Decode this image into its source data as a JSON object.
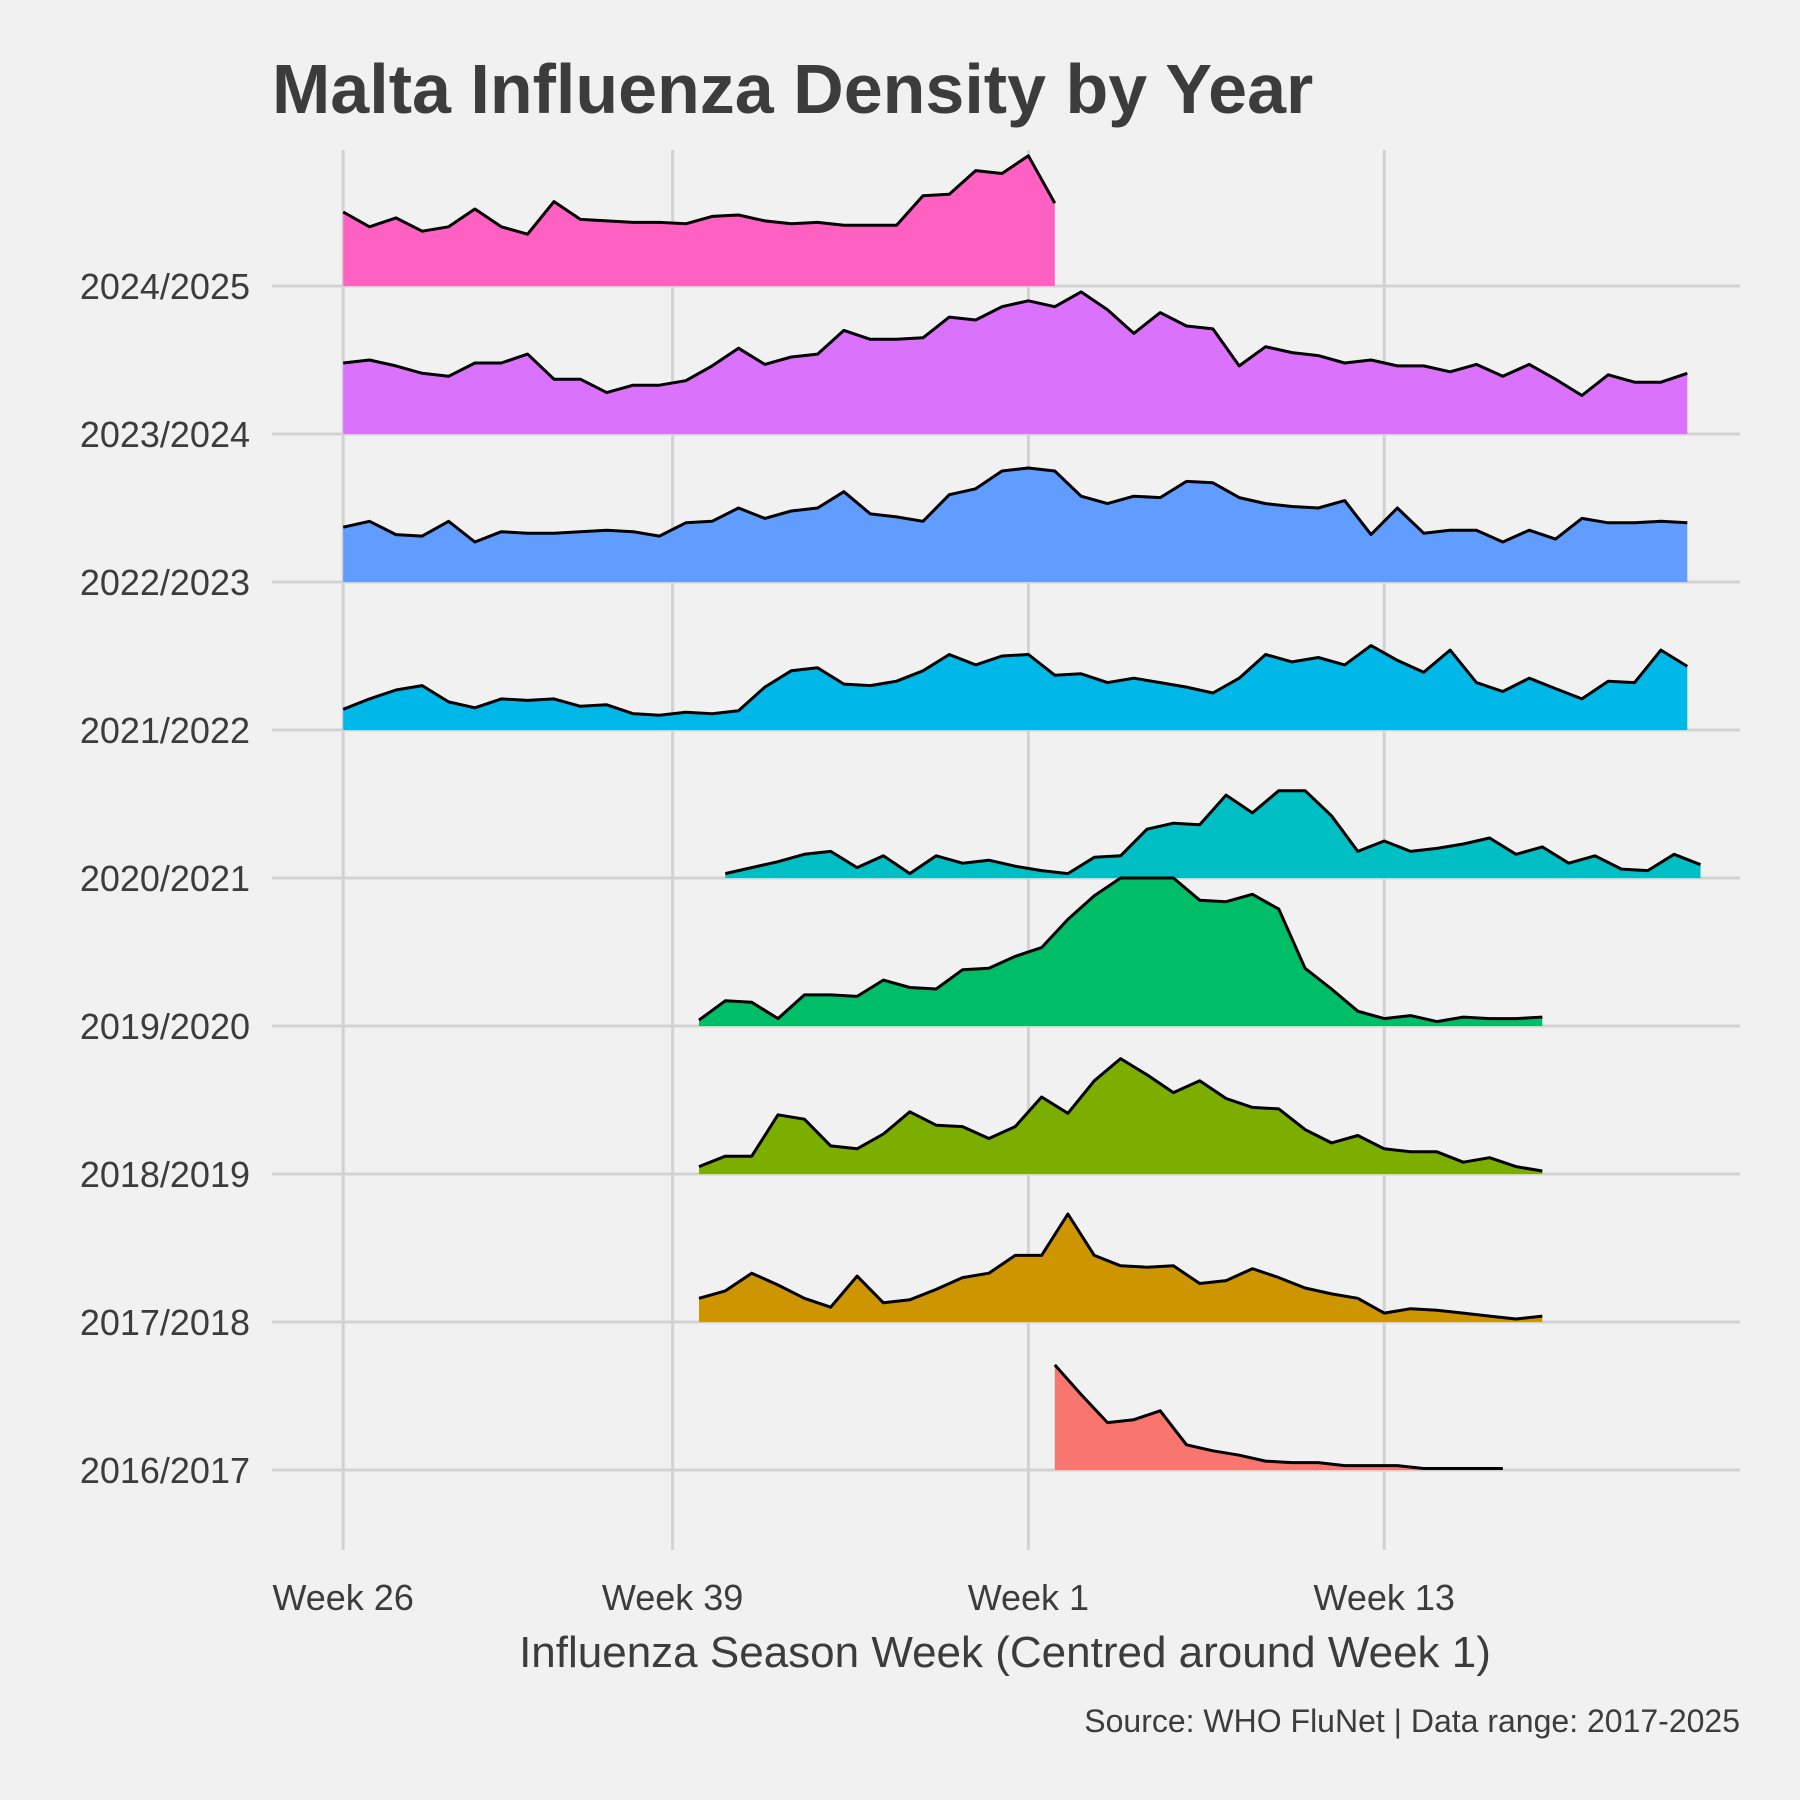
{
  "chart_data": {
    "type": "area",
    "subtype": "ridgeline",
    "title": "Malta Influenza Density by Year",
    "xlabel": "Influenza Season Week (Centred around Week 1)",
    "caption": "Source: WHO FluNet | Data range: 2017-2025",
    "x_unit": "weeks from Week 26 (season week index)",
    "xlim": [
      -2.7,
      53
    ],
    "x_ticks": [
      {
        "value": 0,
        "label": "Week 26"
      },
      {
        "value": 12.5,
        "label": "Week 39"
      },
      {
        "value": 26,
        "label": "Week 1"
      },
      {
        "value": 39.5,
        "label": "Week 13"
      }
    ],
    "grid": true,
    "legend": "none",
    "ridge_height_max": 1.9,
    "series": [
      {
        "name": "2016/2017",
        "color": "#F8766D",
        "start": 27,
        "values": [
          0.71,
          0.51,
          0.32,
          0.34,
          0.4,
          0.17,
          0.13,
          0.1,
          0.06,
          0.05,
          0.05,
          0.03,
          0.03,
          0.03,
          0.01,
          0.01,
          0.01,
          0.01
        ]
      },
      {
        "name": "2017/2018",
        "color": "#CD9600",
        "start": 13.5,
        "values": [
          0.16,
          0.21,
          0.33,
          0.25,
          0.16,
          0.1,
          0.31,
          0.13,
          0.15,
          0.22,
          0.3,
          0.33,
          0.45,
          0.45,
          0.73,
          0.45,
          0.38,
          0.37,
          0.38,
          0.26,
          0.28,
          0.36,
          0.3,
          0.23,
          0.19,
          0.16,
          0.06,
          0.09,
          0.08,
          0.06,
          0.04,
          0.02,
          0.04
        ]
      },
      {
        "name": "2018/2019",
        "color": "#7CAE00",
        "start": 13.5,
        "values": [
          0.05,
          0.12,
          0.12,
          0.4,
          0.37,
          0.19,
          0.17,
          0.27,
          0.42,
          0.33,
          0.32,
          0.24,
          0.32,
          0.52,
          0.41,
          0.63,
          0.78,
          0.67,
          0.55,
          0.63,
          0.51,
          0.45,
          0.44,
          0.3,
          0.21,
          0.26,
          0.17,
          0.15,
          0.15,
          0.08,
          0.11,
          0.05,
          0.02
        ]
      },
      {
        "name": "2019/2020",
        "color": "#00BE67",
        "start": 13.5,
        "values": [
          0.04,
          0.17,
          0.16,
          0.05,
          0.21,
          0.21,
          0.2,
          0.31,
          0.26,
          0.25,
          0.38,
          0.39,
          0.47,
          0.53,
          0.72,
          0.88,
          1.0,
          1.0,
          1.0,
          0.85,
          0.84,
          0.89,
          0.79,
          0.39,
          0.25,
          0.1,
          0.05,
          0.07,
          0.03,
          0.06,
          0.05,
          0.05,
          0.06
        ]
      },
      {
        "name": "2020/2021",
        "color": "#00BFC4",
        "start": 14.5,
        "values": [
          0.03,
          0.07,
          0.11,
          0.16,
          0.18,
          0.07,
          0.15,
          0.03,
          0.15,
          0.1,
          0.12,
          0.08,
          0.05,
          0.03,
          0.14,
          0.15,
          0.33,
          0.37,
          0.36,
          0.56,
          0.44,
          0.59,
          0.59,
          0.42,
          0.18,
          0.25,
          0.18,
          0.2,
          0.23,
          0.27,
          0.16,
          0.21,
          0.1,
          0.15,
          0.06,
          0.05,
          0.16,
          0.09
        ]
      },
      {
        "name": "2021/2022",
        "color": "#00B8E7",
        "start": 0,
        "values": [
          0.14,
          0.21,
          0.27,
          0.3,
          0.19,
          0.15,
          0.21,
          0.2,
          0.21,
          0.16,
          0.17,
          0.11,
          0.1,
          0.12,
          0.11,
          0.13,
          0.29,
          0.4,
          0.42,
          0.31,
          0.3,
          0.33,
          0.4,
          0.51,
          0.44,
          0.5,
          0.51,
          0.37,
          0.38,
          0.32,
          0.35,
          0.32,
          0.29,
          0.25,
          0.35,
          0.51,
          0.46,
          0.49,
          0.44,
          0.57,
          0.47,
          0.39,
          0.54,
          0.32,
          0.26,
          0.35,
          0.28,
          0.21,
          0.33,
          0.32,
          0.54,
          0.43
        ]
      },
      {
        "name": "2022/2023",
        "color": "#619CFF",
        "start": 0,
        "values": [
          0.37,
          0.41,
          0.32,
          0.31,
          0.41,
          0.27,
          0.34,
          0.33,
          0.33,
          0.34,
          0.35,
          0.34,
          0.31,
          0.4,
          0.41,
          0.5,
          0.43,
          0.48,
          0.5,
          0.61,
          0.46,
          0.44,
          0.41,
          0.59,
          0.63,
          0.75,
          0.77,
          0.75,
          0.58,
          0.53,
          0.58,
          0.57,
          0.68,
          0.67,
          0.57,
          0.53,
          0.51,
          0.5,
          0.55,
          0.32,
          0.5,
          0.33,
          0.35,
          0.35,
          0.27,
          0.35,
          0.29,
          0.43,
          0.4,
          0.4,
          0.41,
          0.4
        ]
      },
      {
        "name": "2023/2024",
        "color": "#DB72FB",
        "start": 0,
        "values": [
          0.48,
          0.5,
          0.46,
          0.41,
          0.39,
          0.48,
          0.48,
          0.54,
          0.37,
          0.37,
          0.28,
          0.33,
          0.33,
          0.36,
          0.46,
          0.58,
          0.47,
          0.52,
          0.54,
          0.7,
          0.64,
          0.64,
          0.65,
          0.79,
          0.77,
          0.86,
          0.9,
          0.86,
          0.96,
          0.84,
          0.68,
          0.82,
          0.73,
          0.71,
          0.46,
          0.59,
          0.55,
          0.53,
          0.48,
          0.5,
          0.46,
          0.46,
          0.42,
          0.47,
          0.39,
          0.47,
          0.37,
          0.26,
          0.4,
          0.35,
          0.35,
          0.41
        ]
      },
      {
        "name": "2024/2025",
        "color": "#FF61C3",
        "start": 0,
        "values": [
          0.5,
          0.4,
          0.46,
          0.37,
          0.4,
          0.52,
          0.4,
          0.35,
          0.57,
          0.45,
          0.44,
          0.43,
          0.43,
          0.42,
          0.47,
          0.48,
          0.44,
          0.42,
          0.43,
          0.41,
          0.41,
          0.41,
          0.61,
          0.62,
          0.78,
          0.76,
          0.88,
          0.56
        ]
      }
    ]
  }
}
